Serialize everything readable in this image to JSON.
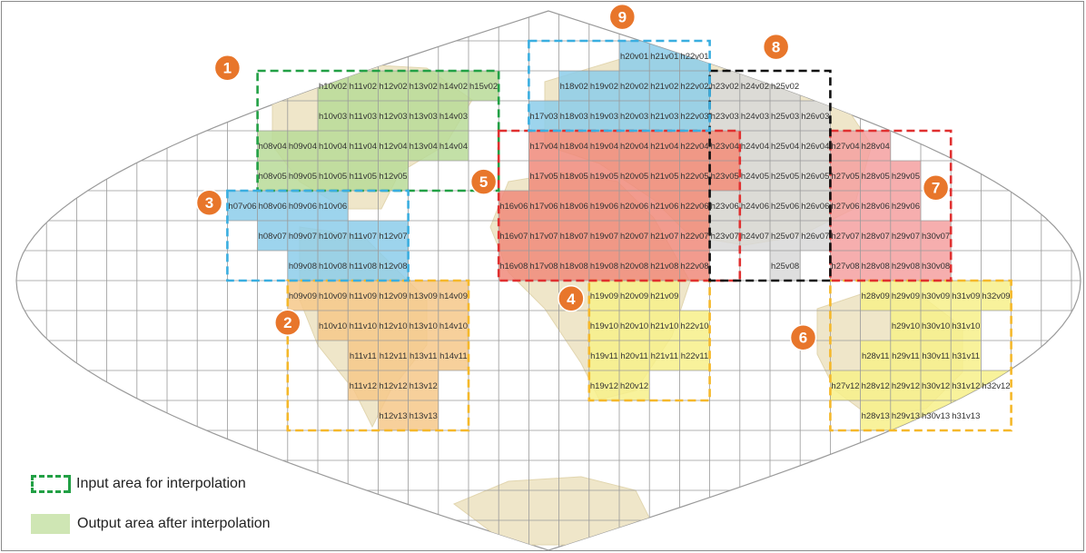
{
  "colors": {
    "grid": "#9a9a9a",
    "land": "#efe6c9",
    "badge": "#e8762b",
    "input_border": "#22a045",
    "output_fill": "#cfe6b4"
  },
  "map": {
    "projection": "sinusoidal",
    "grid": true
  },
  "regions": [
    {
      "id": "1",
      "color": "#22a045",
      "fill": "#b9db98",
      "tiles": [
        {
          "h": 10,
          "v": 2,
          "label": "h10v02"
        },
        {
          "h": 11,
          "v": 2,
          "label": "h11v02"
        },
        {
          "h": 12,
          "v": 2,
          "label": "h12v02"
        },
        {
          "h": 13,
          "v": 2,
          "label": "h13v02"
        },
        {
          "h": 14,
          "v": 2,
          "label": "h14v02"
        },
        {
          "h": 15,
          "v": 2,
          "label": "h15v02"
        },
        {
          "h": 10,
          "v": 3,
          "label": "h10v03"
        },
        {
          "h": 11,
          "v": 3,
          "label": "h11v03"
        },
        {
          "h": 12,
          "v": 3,
          "label": "h12v03"
        },
        {
          "h": 13,
          "v": 3,
          "label": "h13v03"
        },
        {
          "h": 14,
          "v": 3,
          "label": "h14v03"
        },
        {
          "h": 8,
          "v": 4,
          "label": "h08v04"
        },
        {
          "h": 9,
          "v": 4,
          "label": "h09v04"
        },
        {
          "h": 10,
          "v": 4,
          "label": "h10v04"
        },
        {
          "h": 11,
          "v": 4,
          "label": "h11v04"
        },
        {
          "h": 12,
          "v": 4,
          "label": "h12v04"
        },
        {
          "h": 13,
          "v": 4,
          "label": "h13v04"
        },
        {
          "h": 14,
          "v": 4,
          "label": "h14v04"
        },
        {
          "h": 8,
          "v": 5,
          "label": "h08v05"
        },
        {
          "h": 9,
          "v": 5,
          "label": "h09v05"
        },
        {
          "h": 10,
          "v": 5,
          "label": "h10v05"
        },
        {
          "h": 11,
          "v": 5,
          "label": "h11v05"
        },
        {
          "h": 12,
          "v": 5,
          "label": "h12v05"
        }
      ]
    },
    {
      "id": "2",
      "color": "#f5b82a",
      "fill": "#f6c88a",
      "tiles": [
        {
          "h": 9,
          "v": 9,
          "label": "h09v09"
        },
        {
          "h": 10,
          "v": 9,
          "label": "h10v09"
        },
        {
          "h": 11,
          "v": 9,
          "label": "h11v09"
        },
        {
          "h": 12,
          "v": 9,
          "label": "h12v09"
        },
        {
          "h": 13,
          "v": 9,
          "label": "h13v09"
        },
        {
          "h": 14,
          "v": 9,
          "label": "h14v09"
        },
        {
          "h": 10,
          "v": 10,
          "label": "h10v10"
        },
        {
          "h": 11,
          "v": 10,
          "label": "h11v10"
        },
        {
          "h": 12,
          "v": 10,
          "label": "h12v10"
        },
        {
          "h": 13,
          "v": 10,
          "label": "h13v10"
        },
        {
          "h": 14,
          "v": 10,
          "label": "h14v10"
        },
        {
          "h": 11,
          "v": 11,
          "label": "h11v11"
        },
        {
          "h": 12,
          "v": 11,
          "label": "h12v11"
        },
        {
          "h": 13,
          "v": 11,
          "label": "h13v11"
        },
        {
          "h": 14,
          "v": 11,
          "label": "h14v11"
        },
        {
          "h": 11,
          "v": 12,
          "label": "h11v12"
        },
        {
          "h": 12,
          "v": 12,
          "label": "h12v12"
        },
        {
          "h": 13,
          "v": 12,
          "label": "h13v12"
        },
        {
          "h": 12,
          "v": 13,
          "label": "h12v13"
        },
        {
          "h": 13,
          "v": 13,
          "label": "h13v13"
        }
      ]
    },
    {
      "id": "3",
      "color": "#3aaee0",
      "fill": "#8ccdea",
      "tiles": [
        {
          "h": 7,
          "v": 6,
          "label": "h07v06"
        },
        {
          "h": 8,
          "v": 6,
          "label": "h08v06"
        },
        {
          "h": 9,
          "v": 6,
          "label": "h09v06"
        },
        {
          "h": 10,
          "v": 6,
          "label": "h10v06"
        },
        {
          "h": 8,
          "v": 7,
          "label": "h08v07"
        },
        {
          "h": 9,
          "v": 7,
          "label": "h09v07"
        },
        {
          "h": 10,
          "v": 7,
          "label": "h10v07"
        },
        {
          "h": 11,
          "v": 7,
          "label": "h11v07"
        },
        {
          "h": 12,
          "v": 7,
          "label": "h12v07"
        },
        {
          "h": 9,
          "v": 8,
          "label": "h09v08"
        },
        {
          "h": 10,
          "v": 8,
          "label": "h10v08"
        },
        {
          "h": 11,
          "v": 8,
          "label": "h11v08"
        },
        {
          "h": 12,
          "v": 8,
          "label": "h12v08"
        }
      ]
    },
    {
      "id": "4",
      "color": "#f5b82a",
      "fill": "#f7f08a",
      "tiles": [
        {
          "h": 19,
          "v": 9,
          "label": "h19v09"
        },
        {
          "h": 20,
          "v": 9,
          "label": "h20v09"
        },
        {
          "h": 21,
          "v": 9,
          "label": "h21v09"
        },
        {
          "h": 19,
          "v": 10,
          "label": "h19v10"
        },
        {
          "h": 20,
          "v": 10,
          "label": "h20v10"
        },
        {
          "h": 21,
          "v": 10,
          "label": "h21v10"
        },
        {
          "h": 22,
          "v": 10,
          "label": "h22v10"
        },
        {
          "h": 19,
          "v": 11,
          "label": "h19v11"
        },
        {
          "h": 20,
          "v": 11,
          "label": "h20v11"
        },
        {
          "h": 21,
          "v": 11,
          "label": "h21v11"
        },
        {
          "h": 22,
          "v": 11,
          "label": "h22v11"
        },
        {
          "h": 19,
          "v": 12,
          "label": "h19v12"
        },
        {
          "h": 20,
          "v": 12,
          "label": "h20v12"
        }
      ]
    },
    {
      "id": "5",
      "color": "#e03030",
      "fill": "#f08a7a",
      "tiles": [
        {
          "h": 17,
          "v": 4,
          "label": "h17v04"
        },
        {
          "h": 18,
          "v": 4,
          "label": "h18v04"
        },
        {
          "h": 19,
          "v": 4,
          "label": "h19v04"
        },
        {
          "h": 20,
          "v": 4,
          "label": "h20v04"
        },
        {
          "h": 21,
          "v": 4,
          "label": "h21v04"
        },
        {
          "h": 22,
          "v": 4,
          "label": "h22v04"
        },
        {
          "h": 23,
          "v": 4,
          "label": "h23v04"
        },
        {
          "h": 17,
          "v": 5,
          "label": "h17v05"
        },
        {
          "h": 18,
          "v": 5,
          "label": "h18v05"
        },
        {
          "h": 19,
          "v": 5,
          "label": "h19v05"
        },
        {
          "h": 20,
          "v": 5,
          "label": "h20v05"
        },
        {
          "h": 21,
          "v": 5,
          "label": "h21v05"
        },
        {
          "h": 22,
          "v": 5,
          "label": "h22v05"
        },
        {
          "h": 23,
          "v": 5,
          "label": "h23v05"
        },
        {
          "h": 16,
          "v": 6,
          "label": "h16v06"
        },
        {
          "h": 17,
          "v": 6,
          "label": "h17v06"
        },
        {
          "h": 18,
          "v": 6,
          "label": "h18v06"
        },
        {
          "h": 19,
          "v": 6,
          "label": "h19v06"
        },
        {
          "h": 20,
          "v": 6,
          "label": "h20v06"
        },
        {
          "h": 21,
          "v": 6,
          "label": "h21v06"
        },
        {
          "h": 22,
          "v": 6,
          "label": "h22v06"
        },
        {
          "h": 16,
          "v": 7,
          "label": "h16v07"
        },
        {
          "h": 17,
          "v": 7,
          "label": "h17v07"
        },
        {
          "h": 18,
          "v": 7,
          "label": "h18v07"
        },
        {
          "h": 19,
          "v": 7,
          "label": "h19v07"
        },
        {
          "h": 20,
          "v": 7,
          "label": "h20v07"
        },
        {
          "h": 21,
          "v": 7,
          "label": "h21v07"
        },
        {
          "h": 22,
          "v": 7,
          "label": "h22v07"
        },
        {
          "h": 16,
          "v": 8,
          "label": "h16v08"
        },
        {
          "h": 17,
          "v": 8,
          "label": "h17v08"
        },
        {
          "h": 18,
          "v": 8,
          "label": "h18v08"
        },
        {
          "h": 19,
          "v": 8,
          "label": "h19v08"
        },
        {
          "h": 20,
          "v": 8,
          "label": "h20v08"
        },
        {
          "h": 21,
          "v": 8,
          "label": "h21v08"
        },
        {
          "h": 22,
          "v": 8,
          "label": "h22v08"
        }
      ]
    },
    {
      "id": "6",
      "color": "#f5b82a",
      "fill": "#f7f08a",
      "tiles": [
        {
          "h": 28,
          "v": 9,
          "label": "h28v09"
        },
        {
          "h": 29,
          "v": 9,
          "label": "h29v09"
        },
        {
          "h": 30,
          "v": 9,
          "label": "h30v09"
        },
        {
          "h": 31,
          "v": 9,
          "label": "h31v09"
        },
        {
          "h": 32,
          "v": 9,
          "label": "h32v09"
        },
        {
          "h": 29,
          "v": 10,
          "label": "h29v10"
        },
        {
          "h": 30,
          "v": 10,
          "label": "h30v10"
        },
        {
          "h": 31,
          "v": 10,
          "label": "h31v10"
        },
        {
          "h": 28,
          "v": 11,
          "label": "h28v11"
        },
        {
          "h": 29,
          "v": 11,
          "label": "h29v11"
        },
        {
          "h": 30,
          "v": 11,
          "label": "h30v11"
        },
        {
          "h": 31,
          "v": 11,
          "label": "h31v11"
        },
        {
          "h": 27,
          "v": 12,
          "label": "h27v12"
        },
        {
          "h": 28,
          "v": 12,
          "label": "h28v12"
        },
        {
          "h": 29,
          "v": 12,
          "label": "h29v12"
        },
        {
          "h": 30,
          "v": 12,
          "label": "h30v12"
        },
        {
          "h": 31,
          "v": 12,
          "label": "h31v12"
        },
        {
          "h": 32,
          "v": 12,
          "label": "h32v12"
        },
        {
          "h": 28,
          "v": 13,
          "label": "h28v13"
        },
        {
          "h": 29,
          "v": 13,
          "label": "h29v13"
        },
        {
          "h": 30,
          "v": 13,
          "label": "h30v13"
        },
        {
          "h": 31,
          "v": 13,
          "label": "h31v13"
        }
      ]
    },
    {
      "id": "7",
      "color": "#e03030",
      "fill": "#f4a0a0",
      "tiles": [
        {
          "h": 27,
          "v": 4,
          "label": "h27v04"
        },
        {
          "h": 28,
          "v": 4,
          "label": "h28v04"
        },
        {
          "h": 27,
          "v": 5,
          "label": "h27v05"
        },
        {
          "h": 28,
          "v": 5,
          "label": "h28v05"
        },
        {
          "h": 29,
          "v": 5,
          "label": "h29v05"
        },
        {
          "h": 27,
          "v": 6,
          "label": "h27v06"
        },
        {
          "h": 28,
          "v": 6,
          "label": "h28v06"
        },
        {
          "h": 29,
          "v": 6,
          "label": "h29v06"
        },
        {
          "h": 27,
          "v": 7,
          "label": "h27v07"
        },
        {
          "h": 28,
          "v": 7,
          "label": "h28v07"
        },
        {
          "h": 29,
          "v": 7,
          "label": "h29v07"
        },
        {
          "h": 30,
          "v": 7,
          "label": "h30v07"
        },
        {
          "h": 27,
          "v": 8,
          "label": "h27v08"
        },
        {
          "h": 28,
          "v": 8,
          "label": "h28v08"
        },
        {
          "h": 29,
          "v": 8,
          "label": "h29v08"
        },
        {
          "h": 30,
          "v": 8,
          "label": "h30v08"
        }
      ]
    },
    {
      "id": "8",
      "color": "#111111",
      "fill": "#d8d8d8",
      "tiles": [
        {
          "h": 23,
          "v": 2,
          "label": "h23v02"
        },
        {
          "h": 24,
          "v": 2,
          "label": "h24v02"
        },
        {
          "h": 25,
          "v": 2,
          "label": "h25v02"
        },
        {
          "h": 23,
          "v": 3,
          "label": "h23v03"
        },
        {
          "h": 24,
          "v": 3,
          "label": "h24v03"
        },
        {
          "h": 25,
          "v": 3,
          "label": "h25v03"
        },
        {
          "h": 26,
          "v": 3,
          "label": "h26v03"
        },
        {
          "h": 24,
          "v": 4,
          "label": "h24v04"
        },
        {
          "h": 25,
          "v": 4,
          "label": "h25v04"
        },
        {
          "h": 26,
          "v": 4,
          "label": "h26v04"
        },
        {
          "h": 24,
          "v": 5,
          "label": "h24v05"
        },
        {
          "h": 25,
          "v": 5,
          "label": "h25v05"
        },
        {
          "h": 26,
          "v": 5,
          "label": "h26v05"
        },
        {
          "h": 23,
          "v": 6,
          "label": "h23v06"
        },
        {
          "h": 24,
          "v": 6,
          "label": "h24v06"
        },
        {
          "h": 25,
          "v": 6,
          "label": "h25v06"
        },
        {
          "h": 26,
          "v": 6,
          "label": "h26v06"
        },
        {
          "h": 23,
          "v": 7,
          "label": "h23v07"
        },
        {
          "h": 24,
          "v": 7,
          "label": "h24v07"
        },
        {
          "h": 25,
          "v": 7,
          "label": "h25v07"
        },
        {
          "h": 26,
          "v": 7,
          "label": "h26v07"
        },
        {
          "h": 25,
          "v": 8,
          "label": "h25v08"
        }
      ]
    },
    {
      "id": "9",
      "color": "#3aaee0",
      "fill": "#8ccdea",
      "tiles": [
        {
          "h": 20,
          "v": 1,
          "label": "h20v01"
        },
        {
          "h": 21,
          "v": 1,
          "label": "h21v01"
        },
        {
          "h": 22,
          "v": 1,
          "label": "h22v01"
        },
        {
          "h": 18,
          "v": 2,
          "label": "h18v02"
        },
        {
          "h": 19,
          "v": 2,
          "label": "h19v02"
        },
        {
          "h": 20,
          "v": 2,
          "label": "h20v02"
        },
        {
          "h": 21,
          "v": 2,
          "label": "h21v02"
        },
        {
          "h": 22,
          "v": 2,
          "label": "h22v02"
        },
        {
          "h": 17,
          "v": 3,
          "label": "h17v03"
        },
        {
          "h": 18,
          "v": 3,
          "label": "h18v03"
        },
        {
          "h": 19,
          "v": 3,
          "label": "h19v03"
        },
        {
          "h": 20,
          "v": 3,
          "label": "h20v03"
        },
        {
          "h": 21,
          "v": 3,
          "label": "h21v03"
        },
        {
          "h": 22,
          "v": 3,
          "label": "h22v03"
        }
      ]
    }
  ],
  "legend": {
    "input_label": "Input area for interpolation",
    "output_label": "Output area after interpolation"
  }
}
